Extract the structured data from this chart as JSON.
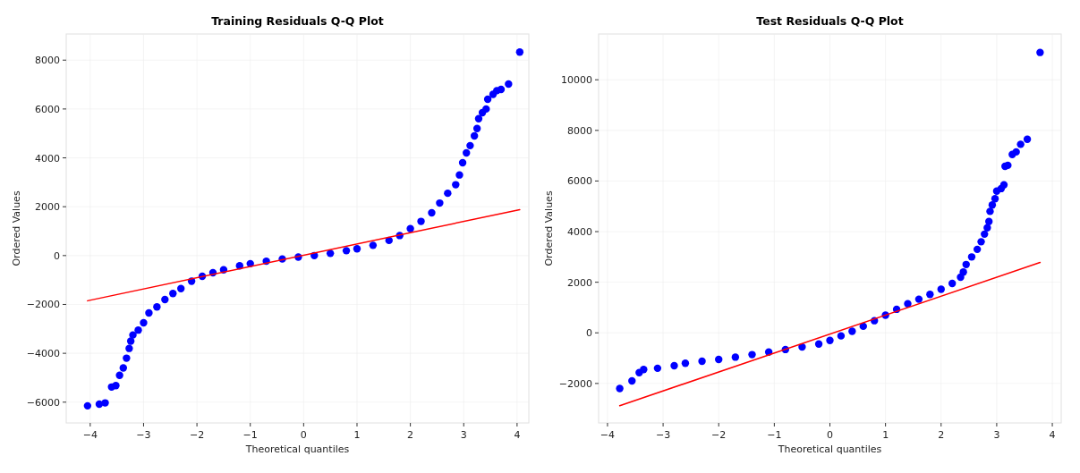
{
  "chart_data": [
    {
      "type": "scatter",
      "title": "Training Residuals Q-Q Plot",
      "xlabel": "Theoretical quantiles",
      "ylabel": "Ordered Values",
      "xlim": [
        -4.45,
        4.22
      ],
      "ylim": [
        -6850,
        9070
      ],
      "xticks": [
        {
          "value": -4,
          "label": "−4"
        },
        {
          "value": -3,
          "label": "−3"
        },
        {
          "value": -2,
          "label": "−2"
        },
        {
          "value": -1,
          "label": "−1"
        },
        0,
        1,
        2,
        3,
        4
      ],
      "yticks": [
        {
          "value": -6000,
          "label": "−6000"
        },
        {
          "value": -4000,
          "label": "−4000"
        },
        {
          "value": -2000,
          "label": "−2000"
        },
        0,
        2000,
        4000,
        6000,
        8000
      ],
      "grid": true,
      "series": [
        {
          "marker": "circle",
          "color": "#0000ff",
          "x": [
            -4.05,
            -3.83,
            -3.72,
            -3.6,
            -3.52,
            -3.45,
            -3.38,
            -3.32,
            -3.27,
            -3.24,
            -3.2,
            -3.1,
            -3.0,
            -2.9,
            -2.75,
            -2.6,
            -2.45,
            -2.3,
            -2.1,
            -1.9,
            -1.7,
            -1.5,
            -1.2,
            -1.0,
            -0.7,
            -0.4,
            -0.1,
            0.2,
            0.5,
            0.8,
            1.0,
            1.3,
            1.6,
            1.8,
            2.0,
            2.2,
            2.4,
            2.55,
            2.7,
            2.85,
            2.92,
            2.98,
            3.05,
            3.12,
            3.2,
            3.25,
            3.28,
            3.35,
            3.42,
            3.45,
            3.55,
            3.62,
            3.7,
            3.84,
            4.05
          ],
          "values": [
            -6150,
            -6080,
            -6030,
            -5380,
            -5320,
            -4900,
            -4600,
            -4200,
            -3800,
            -3500,
            -3250,
            -3050,
            -2750,
            -2350,
            -2100,
            -1800,
            -1550,
            -1350,
            -1050,
            -850,
            -700,
            -580,
            -420,
            -330,
            -230,
            -140,
            -60,
            0,
            90,
            200,
            280,
            420,
            620,
            820,
            1100,
            1400,
            1750,
            2150,
            2550,
            2900,
            3300,
            3800,
            4200,
            4500,
            4900,
            5200,
            5600,
            5850,
            6000,
            6400,
            6600,
            6750,
            6800,
            7020,
            8330
          ]
        },
        {
          "type": "line",
          "marker": "none",
          "color": "#ff0000",
          "x": [
            -4.05,
            4.05
          ],
          "values": [
            -1850,
            1880
          ]
        }
      ]
    },
    {
      "type": "scatter",
      "title": "Test Residuals Q-Q Plot",
      "xlabel": "Theoretical quantiles",
      "ylabel": "Ordered Values",
      "xlim": [
        -4.16,
        4.16
      ],
      "ylim": [
        -3560,
        11810
      ],
      "xticks": [
        {
          "value": -4,
          "label": "−4"
        },
        {
          "value": -3,
          "label": "−3"
        },
        {
          "value": -2,
          "label": "−2"
        },
        {
          "value": -1,
          "label": "−1"
        },
        0,
        1,
        2,
        3,
        4
      ],
      "yticks": [
        {
          "value": -2000,
          "label": "−2000"
        },
        0,
        2000,
        4000,
        6000,
        8000,
        10000
      ],
      "grid": true,
      "series": [
        {
          "marker": "circle",
          "color": "#0000ff",
          "x": [
            -3.78,
            -3.56,
            -3.43,
            -3.35,
            -3.1,
            -2.8,
            -2.6,
            -2.3,
            -2.0,
            -1.7,
            -1.4,
            -1.1,
            -0.8,
            -0.5,
            -0.2,
            0.0,
            0.2,
            0.4,
            0.6,
            0.8,
            1.0,
            1.2,
            1.4,
            1.6,
            1.8,
            2.0,
            2.2,
            2.35,
            2.4,
            2.45,
            2.55,
            2.65,
            2.72,
            2.78,
            2.83,
            2.86,
            2.88,
            2.92,
            2.97,
            3.0,
            3.08,
            3.13,
            3.15,
            3.2,
            3.28,
            3.35,
            3.43,
            3.55,
            3.78
          ],
          "values": [
            -2200,
            -1900,
            -1570,
            -1450,
            -1400,
            -1300,
            -1200,
            -1120,
            -1050,
            -960,
            -860,
            -760,
            -660,
            -560,
            -440,
            -300,
            -120,
            60,
            260,
            480,
            700,
            930,
            1150,
            1330,
            1520,
            1720,
            1950,
            2200,
            2400,
            2700,
            3000,
            3300,
            3600,
            3900,
            4150,
            4400,
            4800,
            5050,
            5300,
            5600,
            5700,
            5850,
            6580,
            6620,
            7050,
            7150,
            7450,
            7650,
            11080
          ]
        },
        {
          "type": "line",
          "marker": "none",
          "color": "#ff0000",
          "x": [
            -3.78,
            3.78
          ],
          "values": [
            -2880,
            2780
          ]
        }
      ]
    }
  ]
}
